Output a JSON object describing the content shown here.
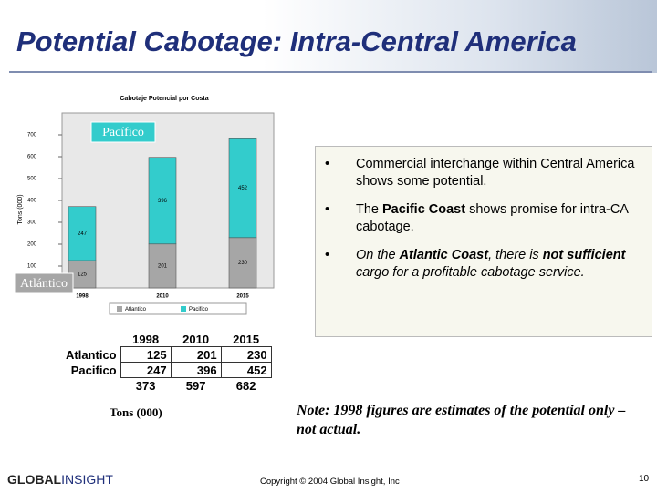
{
  "title": "Potential Cabotage: Intra-Central America",
  "chart_data": {
    "type": "bar",
    "stacked": true,
    "title": "Cabotaje Potencial por Costa",
    "y_label": "Tons (000)",
    "categories": [
      "1998",
      "2010",
      "2015"
    ],
    "series": [
      {
        "name": "Atlantico",
        "color": "#a6a6a6",
        "values": [
          125,
          201,
          230
        ]
      },
      {
        "name": "Pacifico",
        "color": "#33cccc",
        "values": [
          247,
          396,
          452
        ]
      }
    ],
    "ylim": [
      0,
      700
    ],
    "yticks": [
      100,
      200,
      300,
      400,
      500,
      600,
      700
    ],
    "annotations": [
      "Pacífico",
      "Atlántico"
    ]
  },
  "table": {
    "header": [
      "1998",
      "2010",
      "2015"
    ],
    "rows": [
      [
        "Atlantico",
        "125",
        "201",
        "230"
      ],
      [
        "Pacifico",
        "247",
        "396",
        "452"
      ]
    ],
    "totals": [
      "373",
      "597",
      "682"
    ]
  },
  "units": "Tons (000)",
  "bullets": [
    [
      {
        "text": "Commercial interchange within Central America shows some potential.",
        "bold": false
      }
    ],
    [
      {
        "text": "The ",
        "bold": false
      },
      {
        "text": "Pacific Coast",
        "bold": true
      },
      {
        "text": " shows promise for intra-CA cabotage.",
        "bold": false
      }
    ],
    [
      {
        "text": "On the ",
        "bold": false
      },
      {
        "text": "Atlantic Coast",
        "bold": true
      },
      {
        "text": ", there is ",
        "bold": false
      },
      {
        "text": "not sufficient",
        "bold": true
      },
      {
        "text": " cargo for a profitable cabotage service.",
        "bold": false
      }
    ]
  ],
  "bullet_italic": [
    false,
    false,
    true
  ],
  "note": "Note: 1998 figures are estimates of the potential only – not actual.",
  "logo": [
    "GLOBAL",
    "INSIGHT"
  ],
  "copyright": "Copyright © 2004 Global Insight, Inc",
  "page_number": "10"
}
